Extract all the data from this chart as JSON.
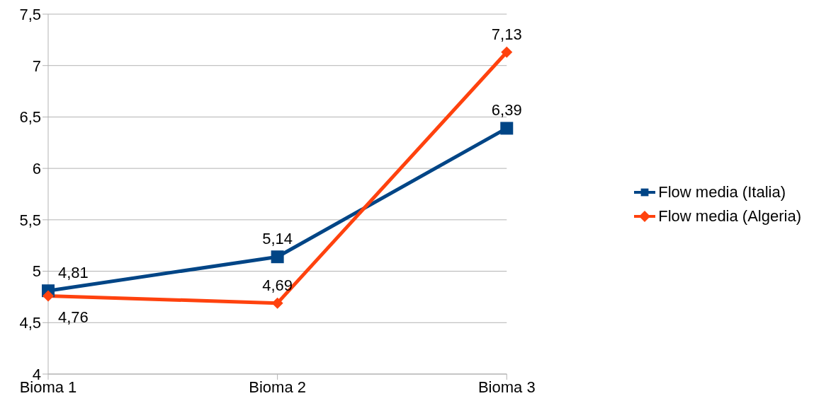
{
  "chart_data": {
    "type": "line",
    "categories": [
      "Bioma 1",
      "Bioma 2",
      "Bioma 3"
    ],
    "series": [
      {
        "name": "Flow media (Italia)",
        "color": "#004586",
        "marker": "square",
        "values": [
          4.81,
          5.14,
          6.39
        ],
        "value_labels": [
          "4,81",
          "5,14",
          "6,39"
        ]
      },
      {
        "name": "Flow media (Algeria)",
        "color": "#ff420e",
        "marker": "diamond",
        "values": [
          4.76,
          4.69,
          7.13
        ],
        "value_labels": [
          "4,76",
          "4,69",
          "7,13"
        ]
      }
    ],
    "ylim": [
      4,
      7.5
    ],
    "yticks": [
      {
        "value": 4,
        "label": "4"
      },
      {
        "value": 4.5,
        "label": "4,5"
      },
      {
        "value": 5,
        "label": "5"
      },
      {
        "value": 5.5,
        "label": "5,5"
      },
      {
        "value": 6,
        "label": "6"
      },
      {
        "value": 6.5,
        "label": "6,5"
      },
      {
        "value": 7,
        "label": "7"
      },
      {
        "value": 7.5,
        "label": "7,5"
      }
    ],
    "grid": "y",
    "legend": "right",
    "line_style": "solid"
  }
}
